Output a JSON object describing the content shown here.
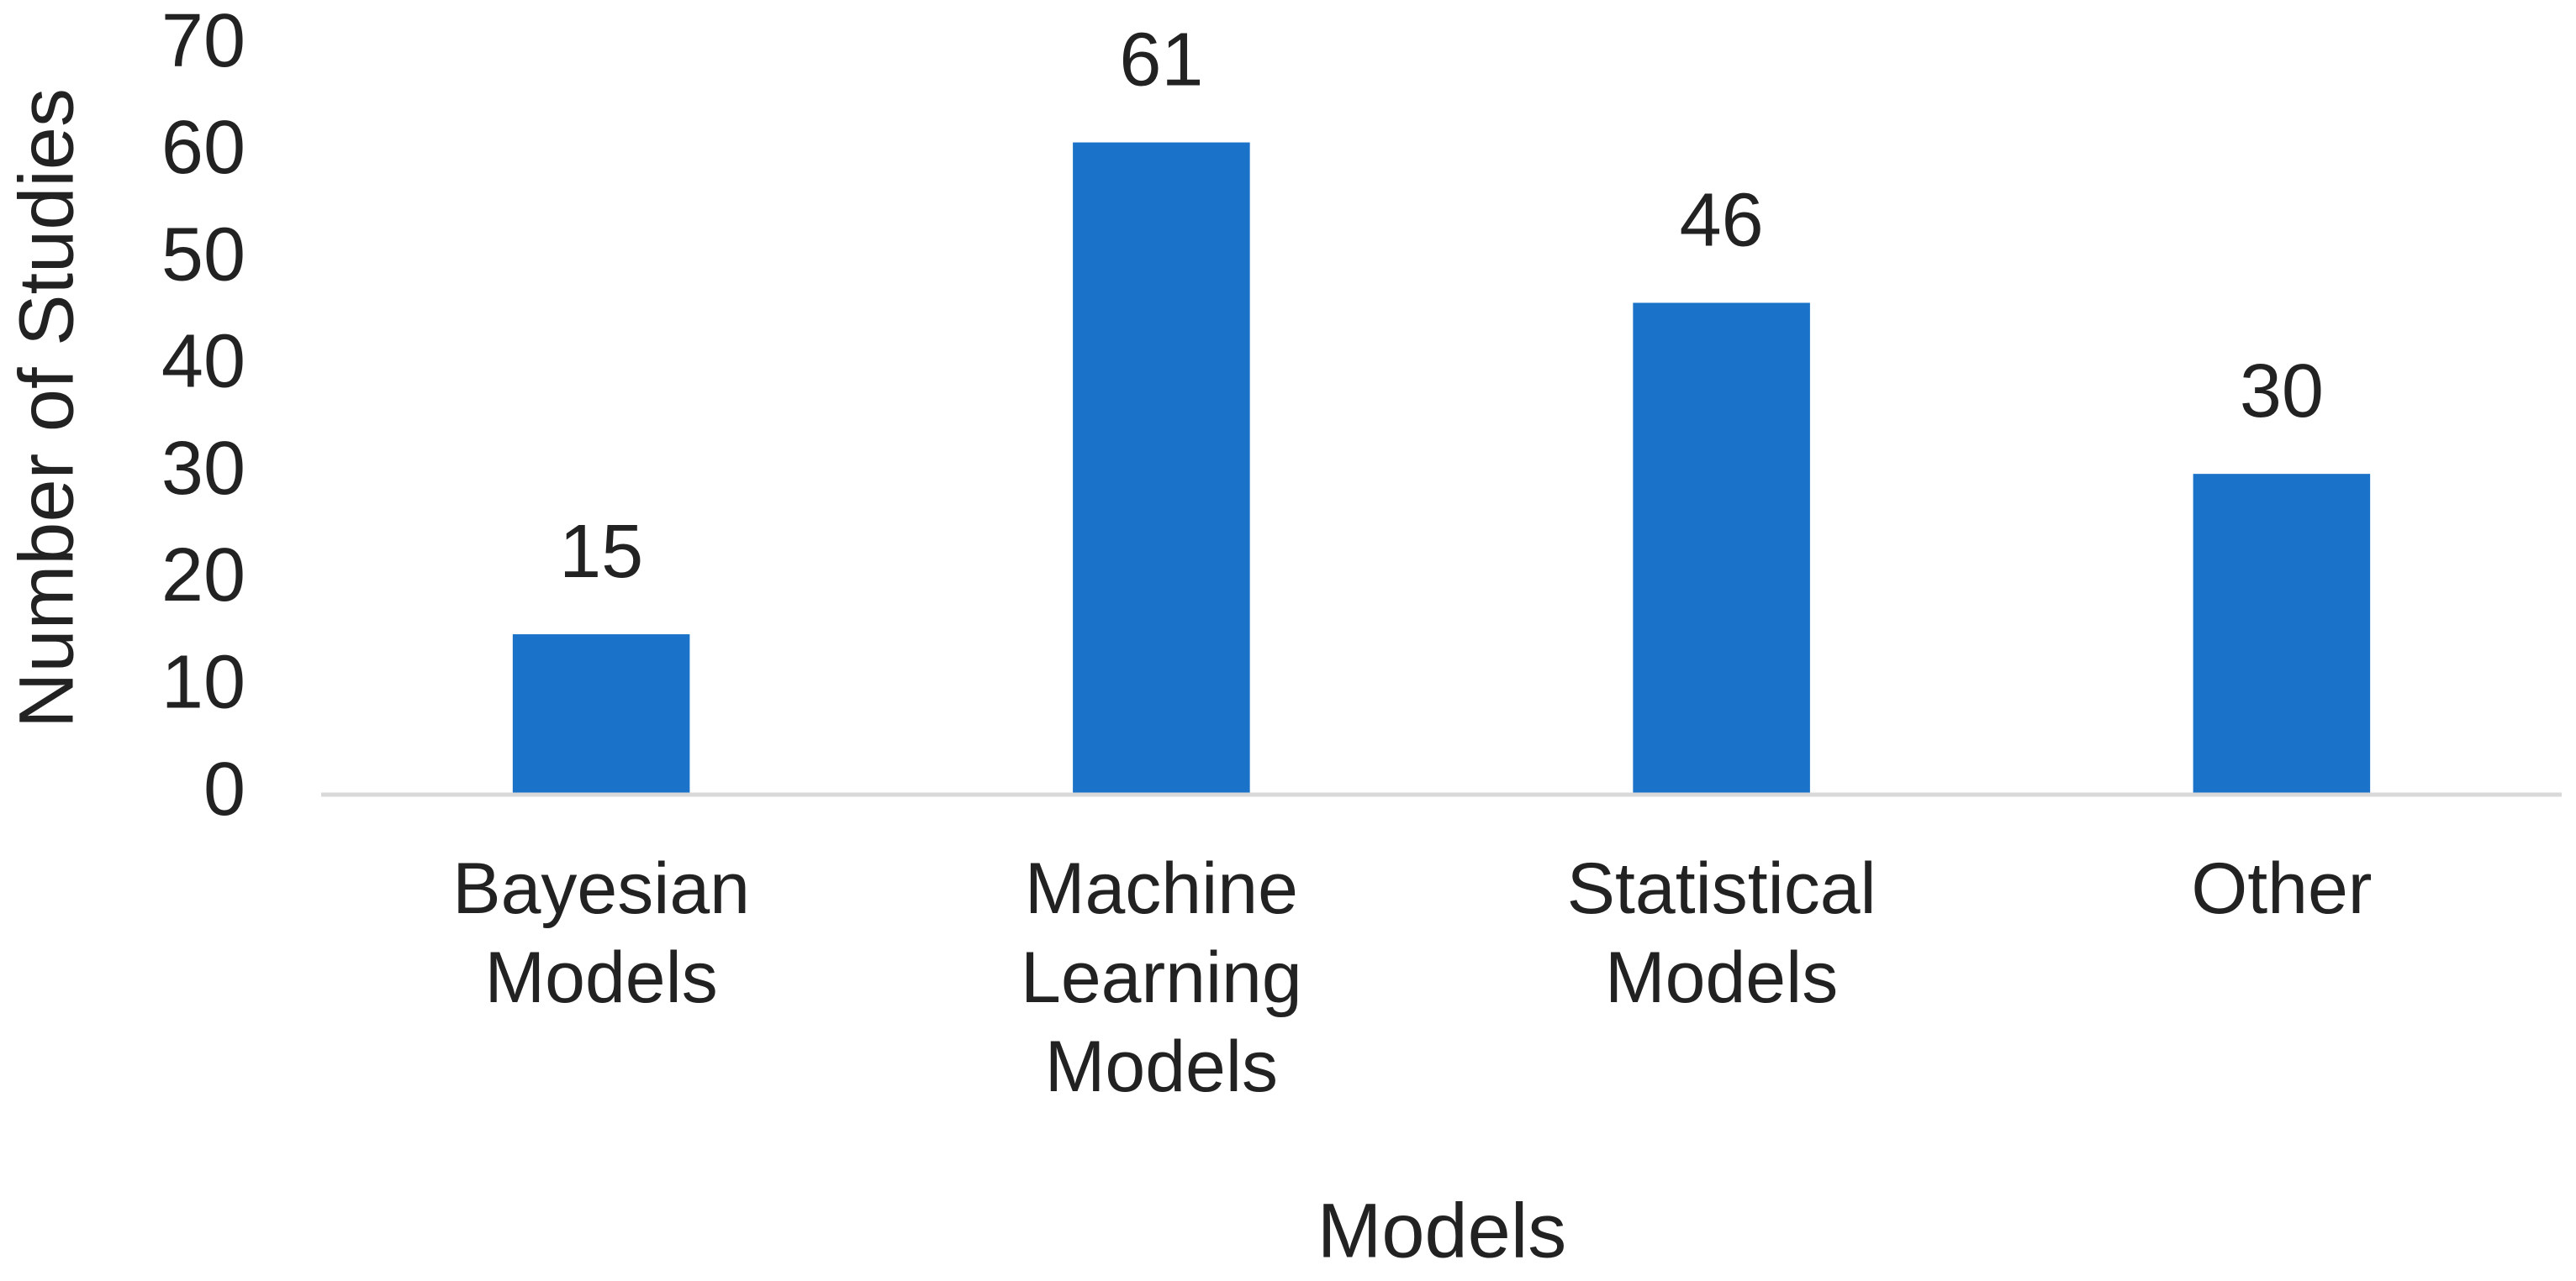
{
  "chart_data": {
    "type": "bar",
    "x_label": "Models",
    "y_label": "Number of Studies",
    "categories": [
      "Bayesian Models",
      "Machine Learning Models",
      "Statistical Models",
      "Other"
    ],
    "values": [
      15,
      61,
      46,
      30
    ],
    "color": "#1a73c8",
    "ylim": [
      0,
      70
    ],
    "yticks": [
      0,
      10,
      20,
      30,
      40,
      50,
      60,
      70
    ],
    "grid": false
  }
}
